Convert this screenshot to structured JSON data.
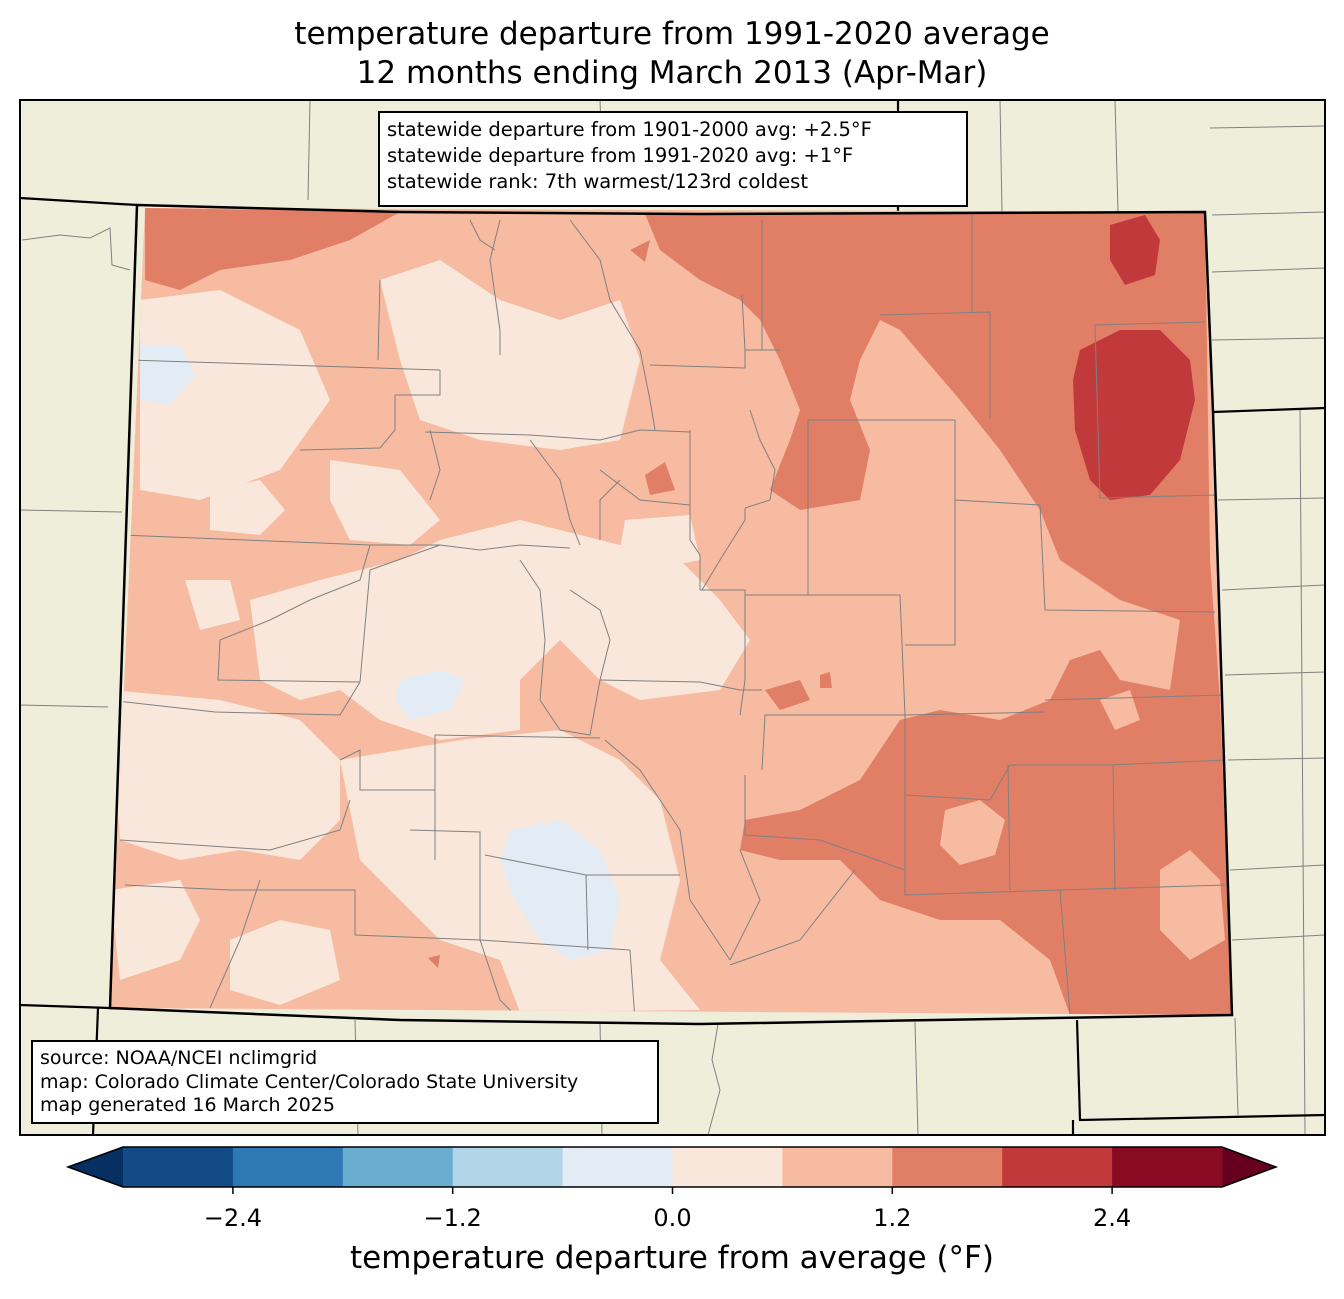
{
  "title": {
    "line1": "temperature departure from 1991-2020 average",
    "line2": "12 months ending March 2013 (Apr-Mar)"
  },
  "stats_box": {
    "line1": "statewide departure from 1901-2000 avg: +2.5°F",
    "line2": "statewide departure from 1991-2020 avg: +1°F",
    "line3": "statewide rank: 7th warmest/123rd coldest"
  },
  "credits_box": {
    "line1": "source: NOAA/NCEI nclimgrid",
    "line2": "map: Colorado Climate Center/Colorado State University",
    "line3": "map generated 16 March 2025"
  },
  "colorbar": {
    "label": "temperature departure from average (°F)",
    "ticks": [
      "−2.4",
      "−1.2",
      "0.0",
      "1.2",
      "2.4"
    ],
    "tick_values": [
      -2.4,
      -1.2,
      0.0,
      1.2,
      2.4
    ],
    "boundaries": [
      -3.0,
      -2.4,
      -1.8,
      -1.2,
      -0.6,
      0.0,
      0.6,
      1.2,
      1.8,
      2.4,
      3.0
    ],
    "under_color": "#053061",
    "over_color": "#67001f",
    "colors": [
      "#134b86",
      "#2e78b5",
      "#6aacd0",
      "#b1d5e7",
      "#e3ecf4",
      "#f9e7dc",
      "#f7bba1",
      "#e17e66",
      "#c1393a",
      "#880a23"
    ]
  },
  "map_colors": {
    "land_background": "#efeedb",
    "ocean_none": "#ffffff",
    "county_lines": "#808080",
    "state_lines": "#000000"
  }
}
